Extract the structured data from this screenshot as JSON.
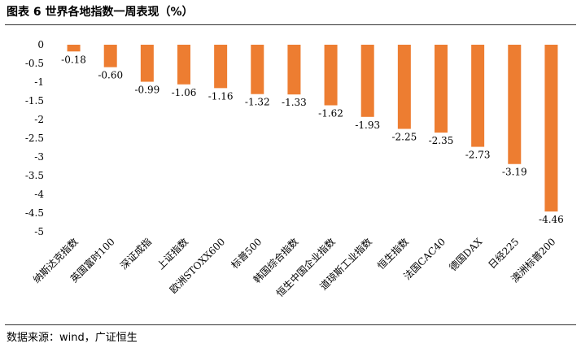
{
  "title": "图表 6  世界各地指数一周表现（%）",
  "source": "数据来源：wind，广证恒生",
  "chart_data": {
    "type": "bar",
    "categories": [
      "纳斯达克指数",
      "英国富时100",
      "深证成指",
      "上证指数",
      "欧洲STOXX600",
      "标普500",
      "韩国综合指数",
      "恒生中国企业指数",
      "道琼斯工业指数",
      "恒生指数",
      "法国CAC40",
      "德国DAX",
      "日经225",
      "澳洲标普200"
    ],
    "values": [
      -0.18,
      -0.6,
      -0.99,
      -1.06,
      -1.16,
      -1.32,
      -1.33,
      -1.62,
      -1.93,
      -2.25,
      -2.35,
      -2.73,
      -3.19,
      -4.46
    ],
    "data_labels": [
      "-0.18",
      "-0.60",
      "-0.99",
      "-1.06",
      "-1.16",
      "-1.32",
      "-1.33",
      "-1.62",
      "-1.93",
      "-2.25",
      "-2.35",
      "-2.73",
      "-3.19",
      "-4.46"
    ],
    "yticks": [
      "0",
      "-0.5",
      "-1",
      "-1.5",
      "-2",
      "-2.5",
      "-3",
      "-3.5",
      "-4",
      "-4.5",
      "-5"
    ],
    "ylim": [
      -5,
      0
    ],
    "bar_color": "#ED7D31",
    "grid": false
  }
}
